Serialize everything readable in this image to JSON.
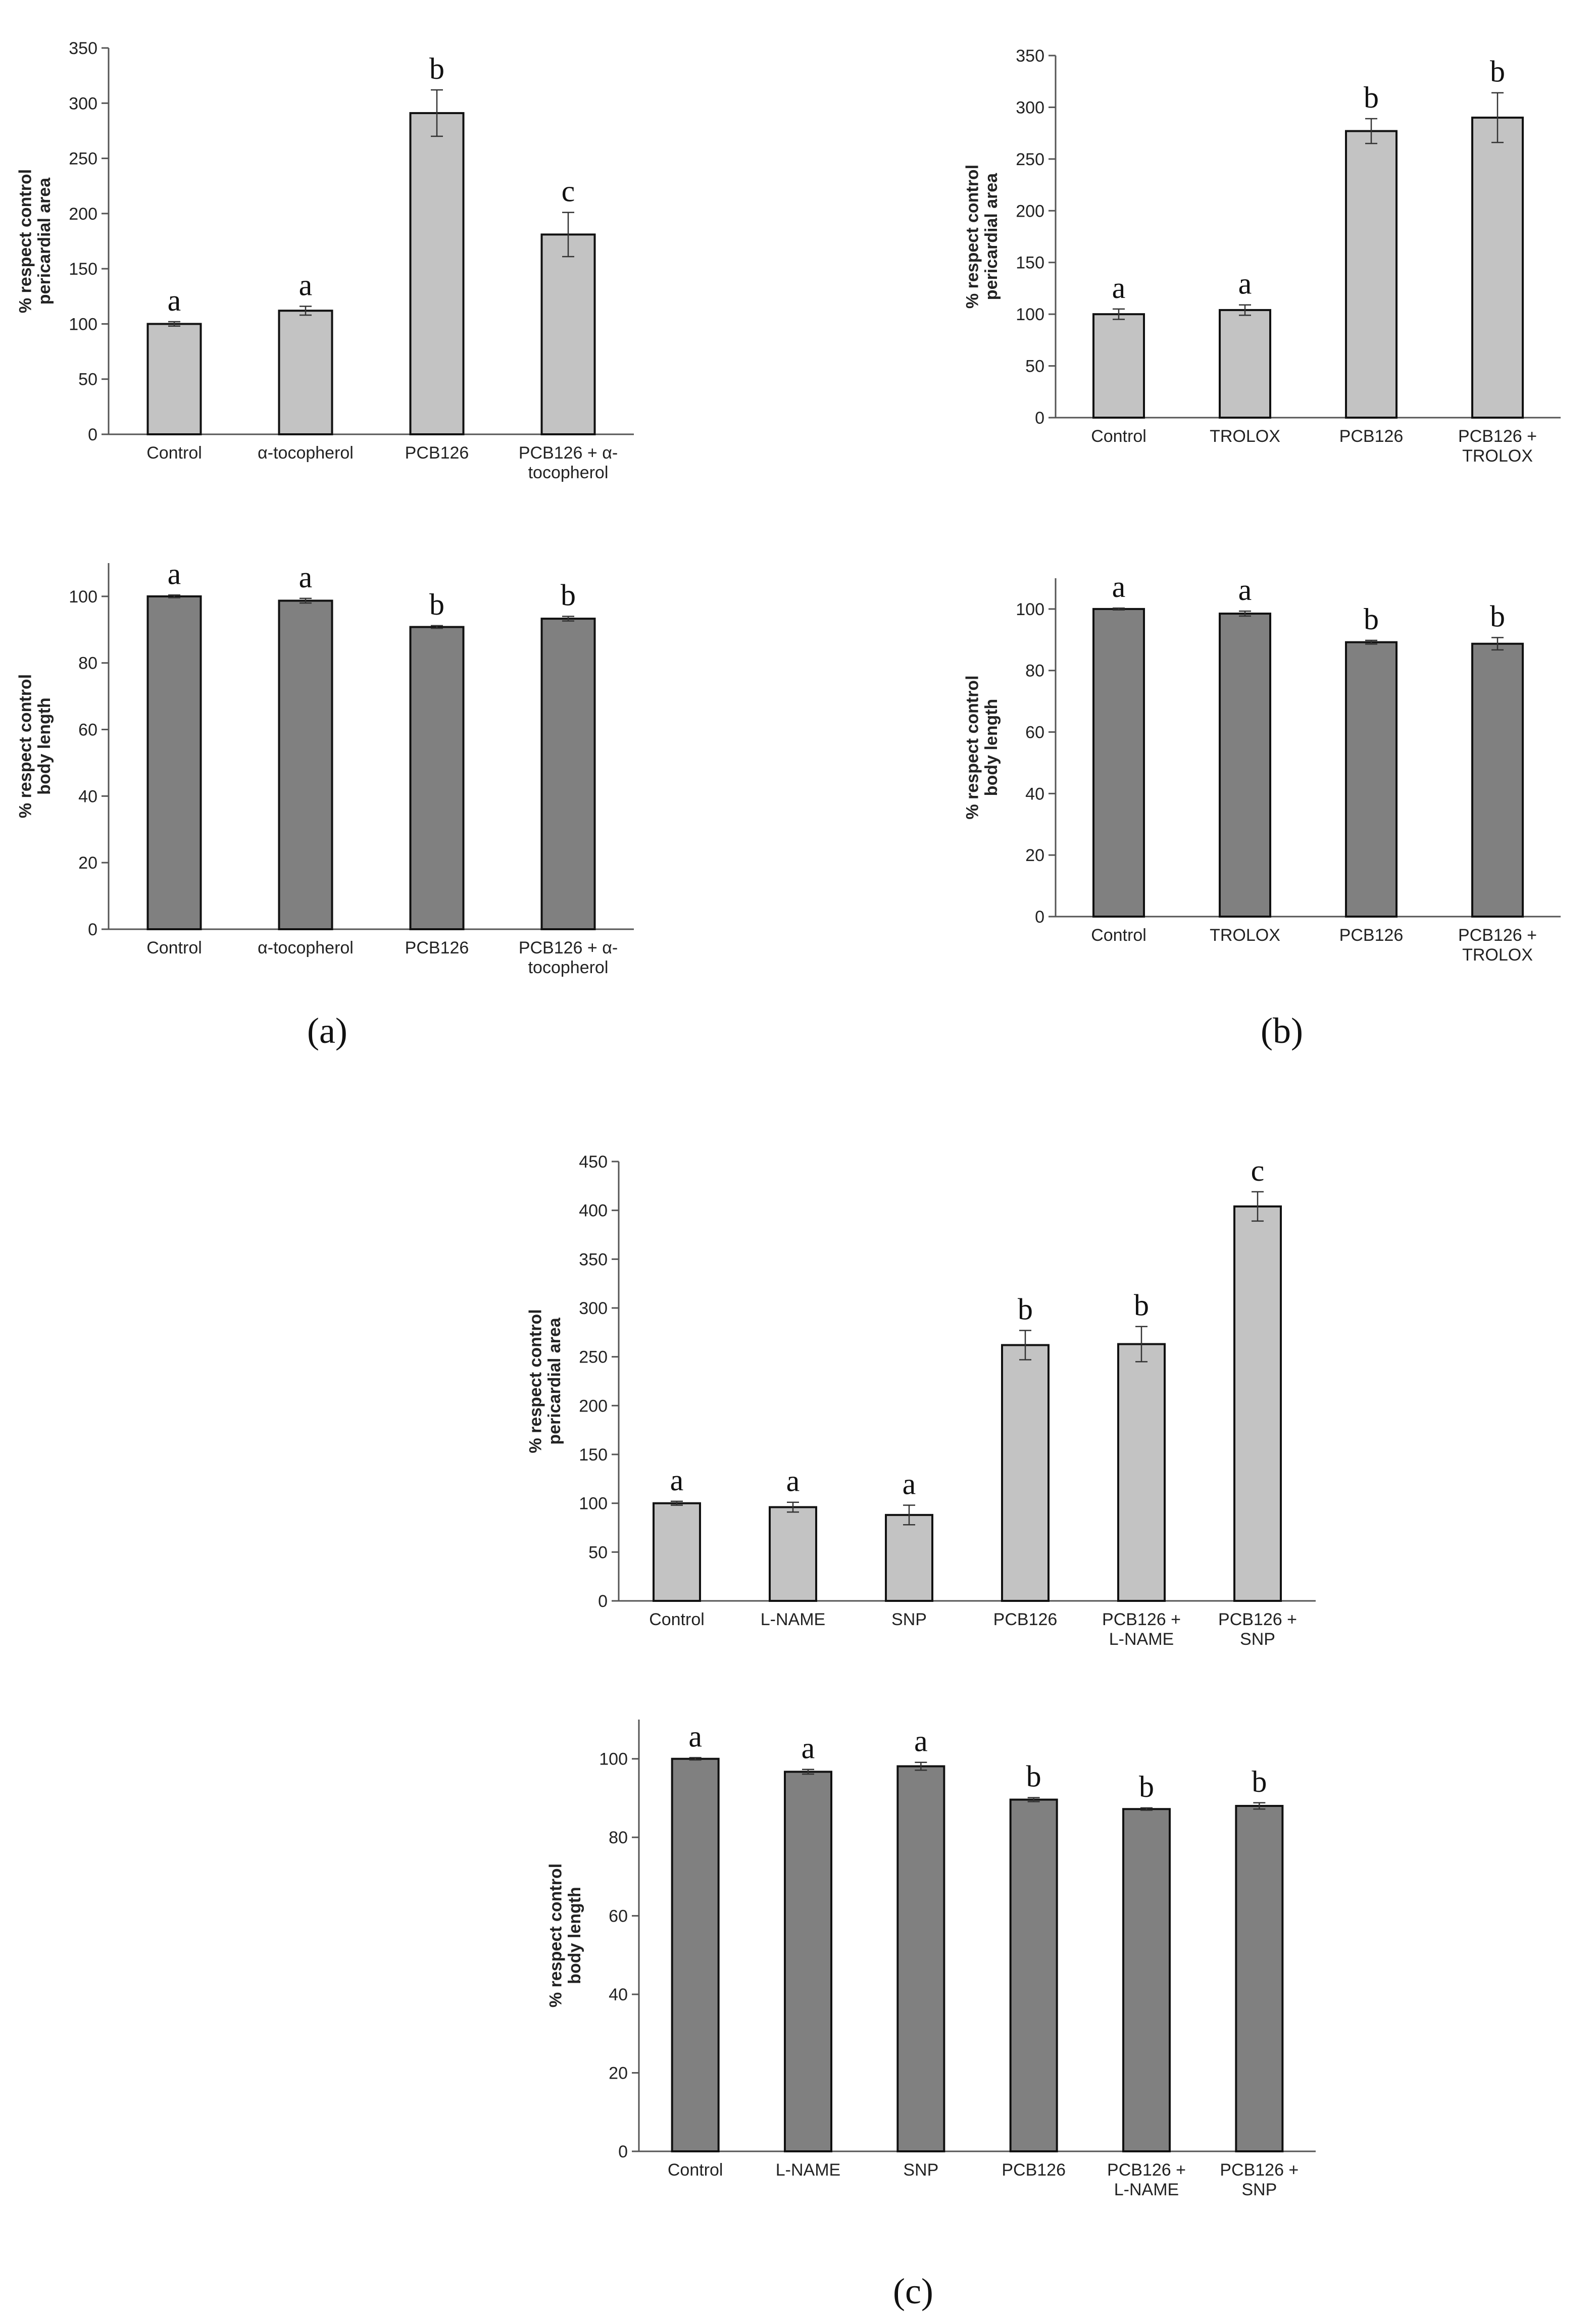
{
  "panel_labels": {
    "a": "(a)",
    "b": "(b)",
    "c": "(c)"
  },
  "colors": {
    "light_bar": "#c3c3c3",
    "dark_bar": "#808080",
    "axis": "#555555",
    "outline": "#111111"
  },
  "chart_data": [
    {
      "id": "a-top",
      "type": "bar",
      "bar_color": "light",
      "ylabel_lines": [
        "% respect control",
        "pericardial area"
      ],
      "ylim": [
        0,
        350
      ],
      "yticks": [
        "0",
        "50",
        "100",
        "150",
        "200",
        "250",
        "300",
        "350"
      ],
      "categories": [
        [
          "Control"
        ],
        [
          "α-tocopherol"
        ],
        [
          "PCB126"
        ],
        [
          "PCB126 + α-",
          "tocopherol"
        ]
      ],
      "values": [
        100,
        112,
        291,
        181
      ],
      "errors": [
        2,
        4,
        21,
        20
      ],
      "significance": [
        "a",
        "a",
        "b",
        "c"
      ]
    },
    {
      "id": "a-bottom",
      "type": "bar",
      "bar_color": "dark",
      "ylabel_lines": [
        "% respect control",
        "body length"
      ],
      "ylim": [
        0,
        110
      ],
      "yticks": [
        "0",
        "20",
        "40",
        "60",
        "80",
        "100"
      ],
      "categories": [
        [
          "Control"
        ],
        [
          "α-tocopherol"
        ],
        [
          "PCB126"
        ],
        [
          "PCB126 + α-",
          "tocopherol"
        ]
      ],
      "values": [
        100,
        98.7,
        90.8,
        93.3
      ],
      "errors": [
        0.4,
        0.7,
        0.4,
        0.7
      ],
      "significance": [
        "a",
        "a",
        "b",
        "b"
      ]
    },
    {
      "id": "b-top",
      "type": "bar",
      "bar_color": "light",
      "ylabel_lines": [
        "% respect control",
        "pericardial area"
      ],
      "ylim": [
        0,
        350
      ],
      "yticks": [
        "0",
        "50",
        "100",
        "150",
        "200",
        "250",
        "300",
        "350"
      ],
      "categories": [
        [
          "Control"
        ],
        [
          "TROLOX"
        ],
        [
          "PCB126"
        ],
        [
          "PCB126 +",
          "TROLOX"
        ]
      ],
      "values": [
        100,
        104,
        277,
        290
      ],
      "errors": [
        5,
        5,
        12,
        24
      ],
      "significance": [
        "a",
        "a",
        "b",
        "b"
      ]
    },
    {
      "id": "b-bottom",
      "type": "bar",
      "bar_color": "dark",
      "ylabel_lines": [
        "% respect control",
        "body length"
      ],
      "ylim": [
        0,
        110
      ],
      "yticks": [
        "0",
        "20",
        "40",
        "60",
        "80",
        "100"
      ],
      "categories": [
        [
          "Control"
        ],
        [
          "TROLOX"
        ],
        [
          "PCB126"
        ],
        [
          "PCB126 +",
          "TROLOX"
        ]
      ],
      "values": [
        100,
        98.5,
        89.2,
        88.7
      ],
      "errors": [
        0.3,
        0.8,
        0.6,
        2.0
      ],
      "significance": [
        "a",
        "a",
        "b",
        "b"
      ]
    },
    {
      "id": "c-top",
      "type": "bar",
      "bar_color": "light",
      "ylabel_lines": [
        "% respect control",
        "pericardial area"
      ],
      "ylim": [
        0,
        450
      ],
      "yticks": [
        "0",
        "50",
        "100",
        "150",
        "200",
        "250",
        "300",
        "350",
        "400",
        "450"
      ],
      "categories": [
        [
          "Control"
        ],
        [
          "L-NAME"
        ],
        [
          "SNP"
        ],
        [
          "PCB126"
        ],
        [
          "PCB126 +",
          "L-NAME"
        ],
        [
          "PCB126 +",
          "SNP"
        ]
      ],
      "values": [
        100,
        96,
        88,
        262,
        263,
        404
      ],
      "errors": [
        2,
        5,
        10,
        15,
        18,
        15
      ],
      "significance": [
        "a",
        "a",
        "a",
        "b",
        "b",
        "c"
      ]
    },
    {
      "id": "c-bottom",
      "type": "bar",
      "bar_color": "dark",
      "ylabel_lines": [
        "% respect control",
        "body length"
      ],
      "ylim": [
        0,
        110
      ],
      "yticks": [
        "0",
        "20",
        "40",
        "60",
        "80",
        "100"
      ],
      "categories": [
        [
          "Control"
        ],
        [
          "L-NAME"
        ],
        [
          "SNP"
        ],
        [
          "PCB126"
        ],
        [
          "PCB126 +",
          "L-NAME"
        ],
        [
          "PCB126 +",
          "SNP"
        ]
      ],
      "values": [
        100,
        96.7,
        98.1,
        89.6,
        87.2,
        88.0
      ],
      "errors": [
        0.3,
        0.6,
        1.0,
        0.5,
        0.3,
        0.8
      ],
      "significance": [
        "a",
        "a",
        "a",
        "b",
        "b",
        "b"
      ]
    }
  ]
}
